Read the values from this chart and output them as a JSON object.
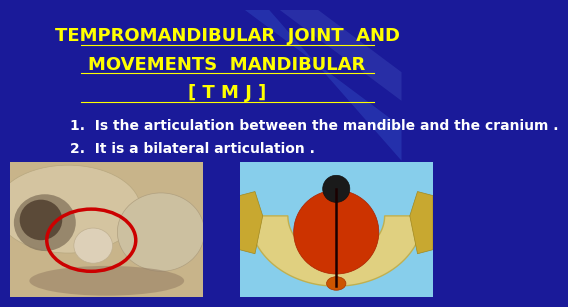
{
  "background_color": "#1a1a99",
  "title_line1": "TEMPROMANDIBULAR  JOINT  AND",
  "title_line2": "MOVEMENTS  MANDIBULAR",
  "title_line3": "[ T M J ]",
  "title_color": "#ffff00",
  "title_fontsize": 13,
  "title_fontstyle": "bold",
  "bullet1": "1.  Is the articulation between the mandible and the cranium .",
  "bullet2": "2.  It is a bilateral articulation .",
  "bullet_color": "#ffffff",
  "bullet_fontsize": 10,
  "bullet_fontstyle": "bold",
  "circle_color": "#cc0000",
  "circle_lw": 2.5
}
